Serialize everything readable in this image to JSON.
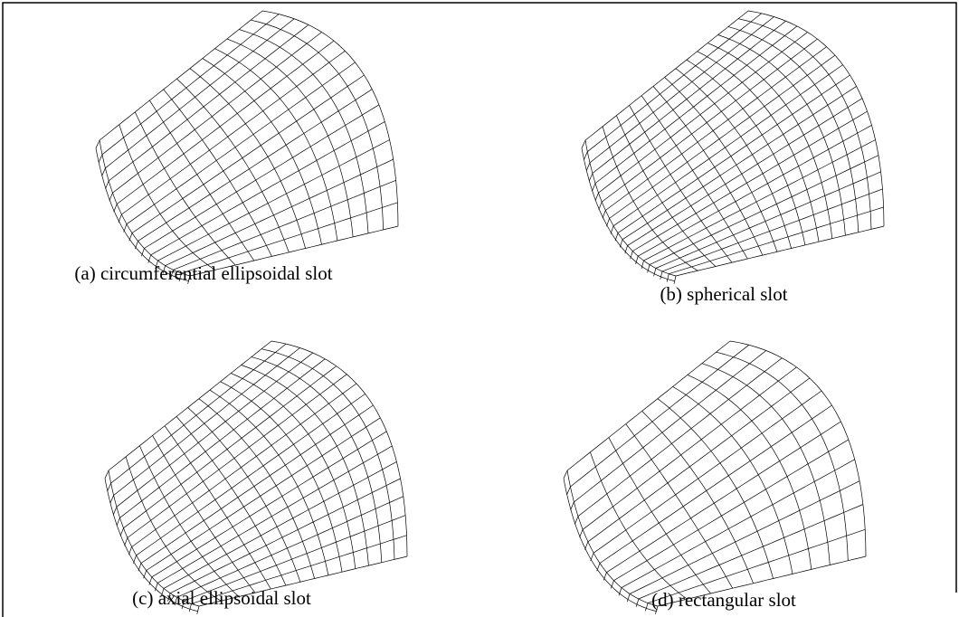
{
  "panels": [
    {
      "caption": "(a) circumferential ellipsoidal slot"
    },
    {
      "caption": "(b) spherical slot"
    },
    {
      "caption": "(c) axial ellipsoidal slot"
    },
    {
      "caption": "(d) rectangular slot"
    }
  ]
}
